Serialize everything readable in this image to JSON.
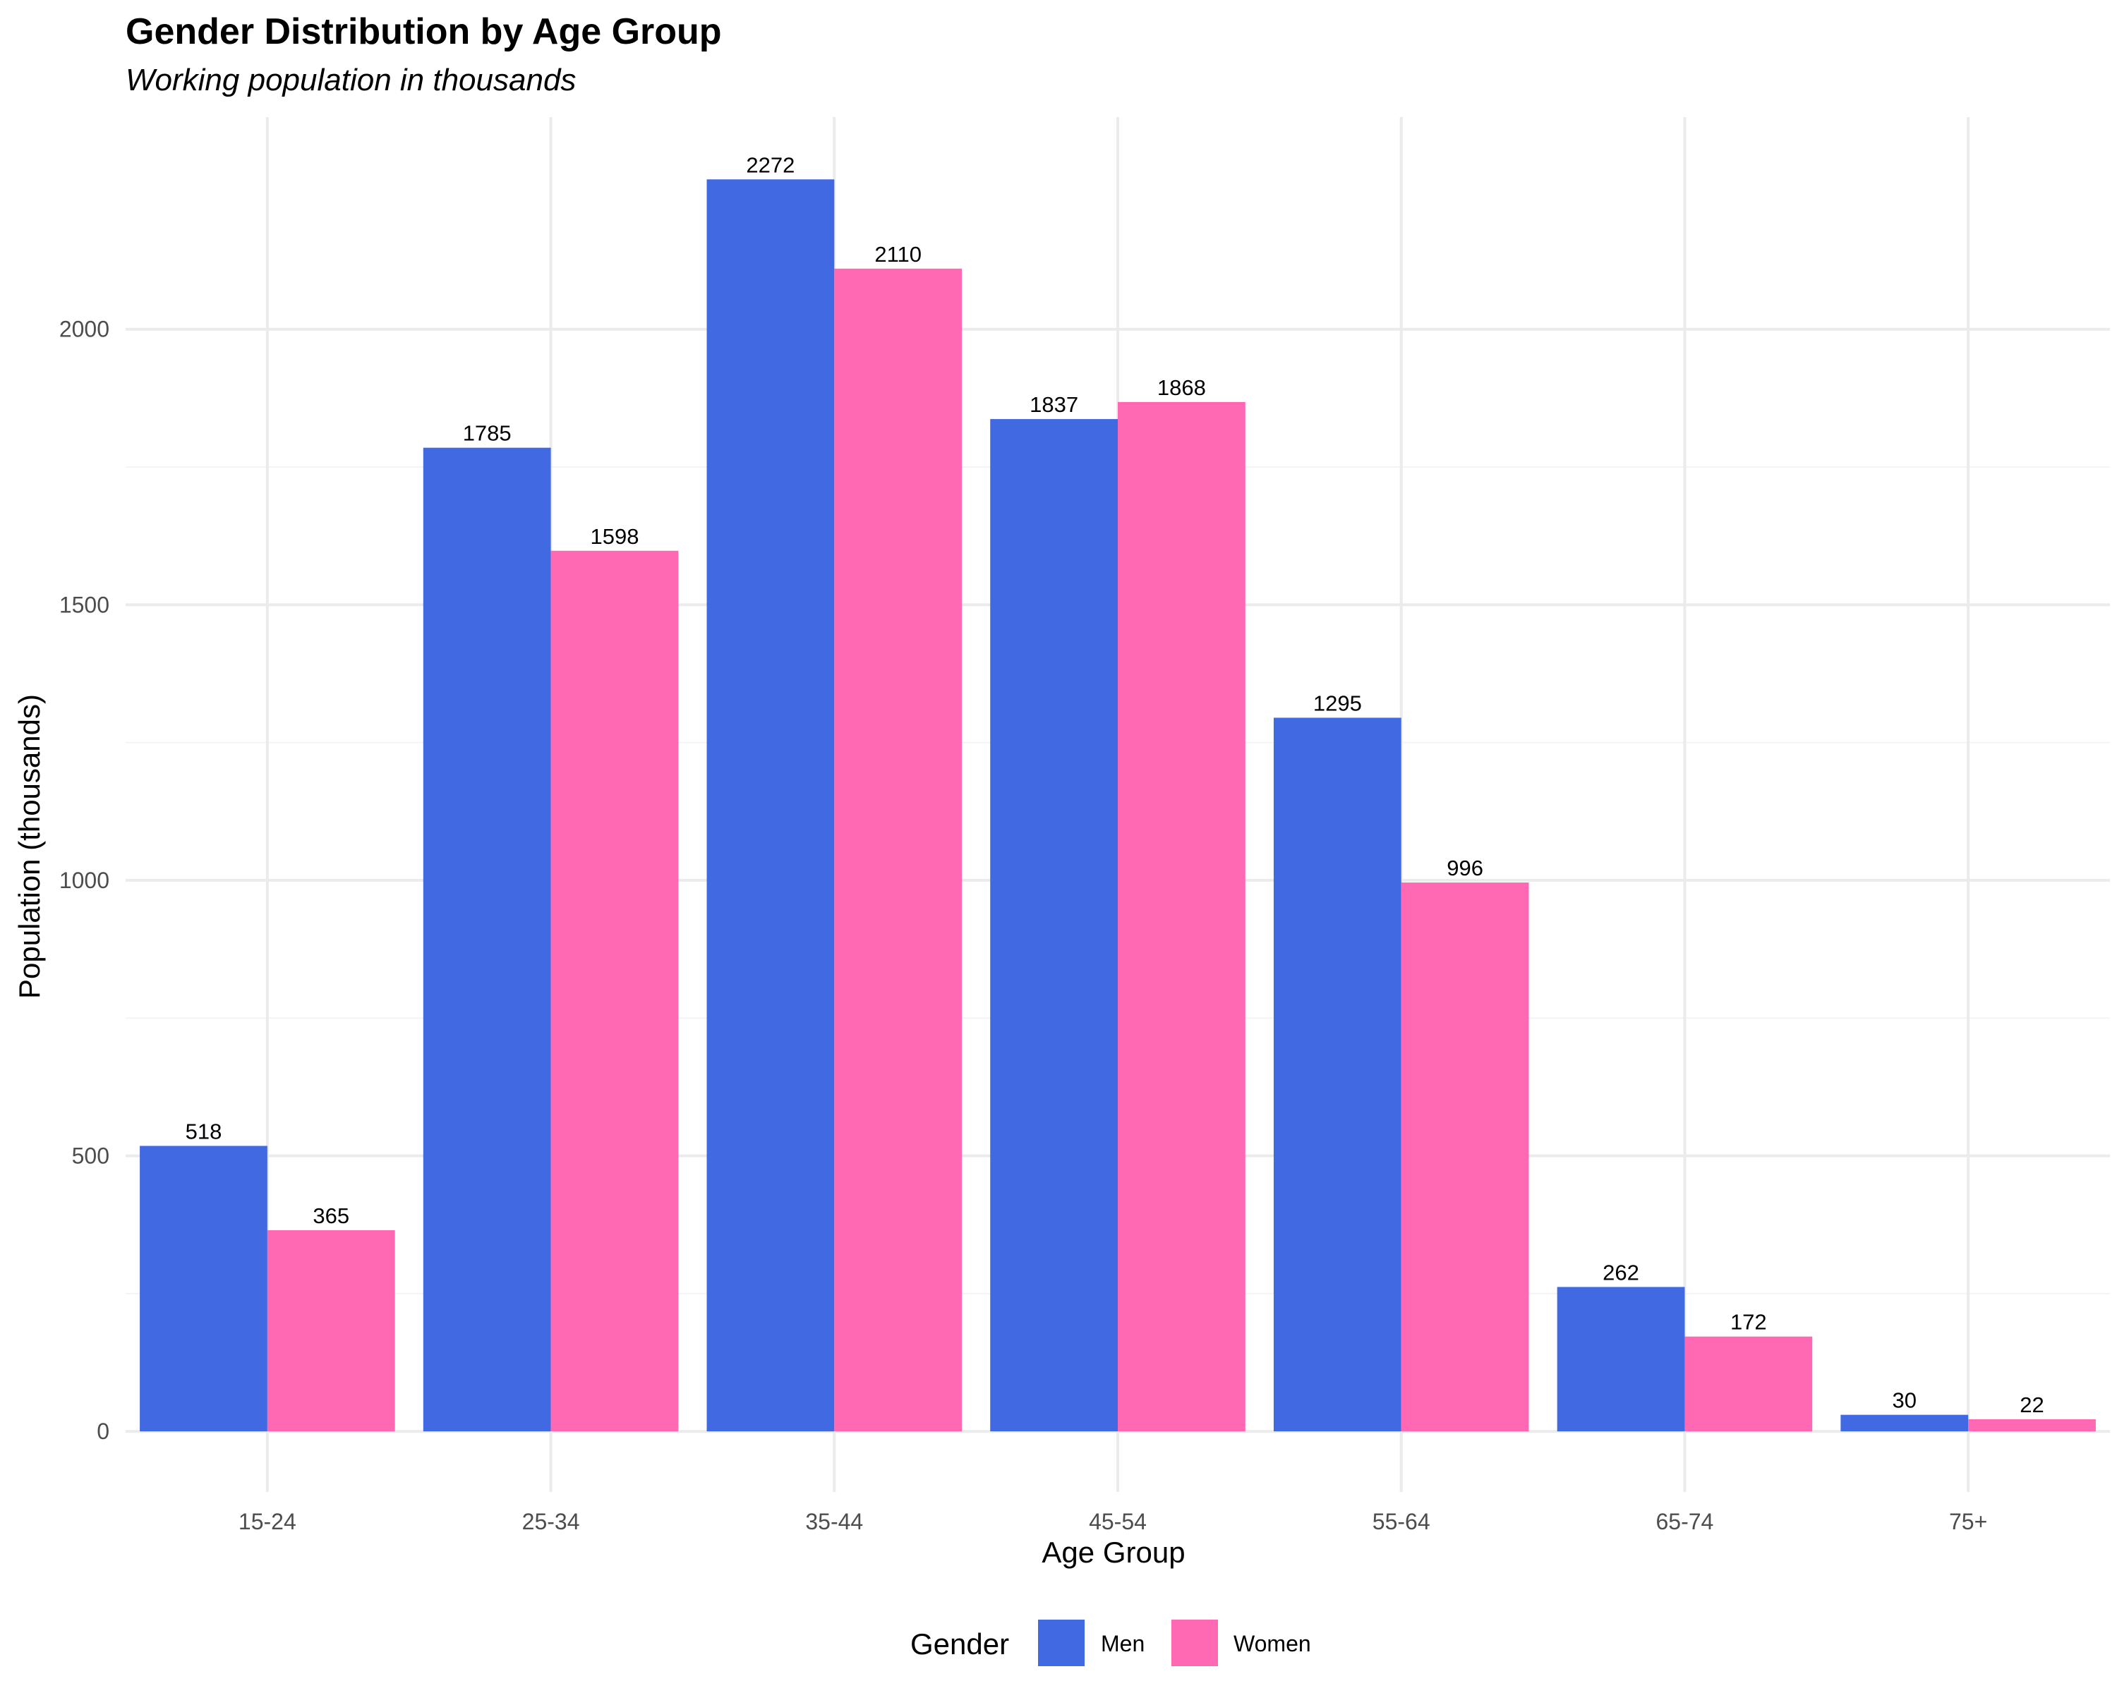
{
  "chart_data": {
    "type": "bar",
    "title": "Gender Distribution by Age Group",
    "subtitle": "Working population in thousands",
    "xlabel": "Age Group",
    "ylabel": "Population (thousands)",
    "categories": [
      "15-24",
      "25-34",
      "35-44",
      "45-54",
      "55-64",
      "65-74",
      "75+"
    ],
    "series": [
      {
        "name": "Men",
        "color": "#4169E1",
        "values": [
          518,
          1785,
          2272,
          1837,
          1295,
          262,
          30
        ]
      },
      {
        "name": "Women",
        "color": "#FF69B4",
        "values": [
          365,
          1598,
          2110,
          1868,
          996,
          172,
          22
        ]
      }
    ],
    "yticks": [
      0,
      500,
      1000,
      1500,
      2000
    ],
    "ylim": [
      -110,
      2385
    ],
    "grid": true,
    "legend": {
      "title": "Gender",
      "position": "bottom"
    }
  }
}
